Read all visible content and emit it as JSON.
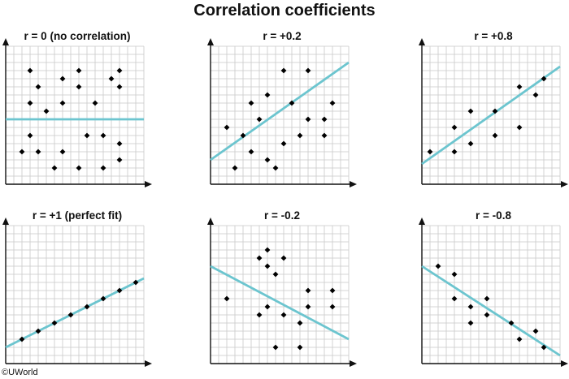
{
  "title": "Correlation coefficients",
  "copyright": "©UWorld",
  "colors": {
    "fit_line": "#6cc5cf",
    "grid": "#c8c8c8",
    "axis": "#111111",
    "point": "#000000"
  },
  "chart_data": [
    {
      "type": "scatter",
      "title": "r = 0 (no correlation)",
      "grid": true,
      "xlim": [
        0,
        17
      ],
      "ylim": [
        0,
        17
      ],
      "points": [
        [
          3,
          14
        ],
        [
          4,
          12
        ],
        [
          3,
          10
        ],
        [
          5,
          9
        ],
        [
          7,
          10
        ],
        [
          7,
          13
        ],
        [
          9,
          14
        ],
        [
          9,
          12
        ],
        [
          11,
          10
        ],
        [
          13,
          13
        ],
        [
          14,
          14
        ],
        [
          14,
          12
        ],
        [
          3,
          6
        ],
        [
          4,
          4
        ],
        [
          2,
          4
        ],
        [
          6,
          2
        ],
        [
          7,
          4
        ],
        [
          9,
          2
        ],
        [
          10,
          6
        ],
        [
          12,
          6
        ],
        [
          12,
          2
        ],
        [
          14,
          5
        ],
        [
          14,
          3
        ]
      ],
      "fit_line": [
        [
          0,
          8
        ],
        [
          17,
          8
        ]
      ]
    },
    {
      "type": "scatter",
      "title": "r = +0.2",
      "grid": true,
      "xlim": [
        0,
        17
      ],
      "ylim": [
        0,
        17
      ],
      "points": [
        [
          2,
          7
        ],
        [
          3,
          2
        ],
        [
          4,
          6
        ],
        [
          5,
          10
        ],
        [
          5,
          4
        ],
        [
          6,
          8
        ],
        [
          7,
          3
        ],
        [
          7,
          11
        ],
        [
          8,
          2
        ],
        [
          9,
          14
        ],
        [
          9,
          5
        ],
        [
          10,
          10
        ],
        [
          11,
          6
        ],
        [
          12,
          14
        ],
        [
          12,
          8
        ],
        [
          14,
          8
        ],
        [
          14,
          6
        ],
        [
          15,
          10
        ]
      ],
      "fit_line": [
        [
          0,
          3
        ],
        [
          17,
          15
        ]
      ]
    },
    {
      "type": "scatter",
      "title": "r = +0.8",
      "grid": true,
      "xlim": [
        0,
        17
      ],
      "ylim": [
        0,
        17
      ],
      "points": [
        [
          1,
          4
        ],
        [
          4,
          4
        ],
        [
          4,
          7
        ],
        [
          6,
          5
        ],
        [
          6,
          9
        ],
        [
          9,
          9
        ],
        [
          9,
          6
        ],
        [
          12,
          12
        ],
        [
          12,
          7
        ],
        [
          14,
          11
        ],
        [
          15,
          13
        ]
      ],
      "fit_line": [
        [
          0,
          2.5
        ],
        [
          17,
          14.5
        ]
      ]
    },
    {
      "type": "scatter",
      "title": "r = +1 (perfect fit)",
      "grid": true,
      "xlim": [
        0,
        17
      ],
      "ylim": [
        0,
        17
      ],
      "points": [
        [
          2,
          3
        ],
        [
          4,
          4
        ],
        [
          6,
          5
        ],
        [
          8,
          6
        ],
        [
          10,
          7
        ],
        [
          12,
          8
        ],
        [
          14,
          9
        ],
        [
          16,
          10
        ]
      ],
      "fit_line": [
        [
          0,
          2
        ],
        [
          17,
          10.5
        ]
      ]
    },
    {
      "type": "scatter",
      "title": "r = -0.2",
      "grid": true,
      "xlim": [
        0,
        17
      ],
      "ylim": [
        0,
        17
      ],
      "points": [
        [
          2,
          8
        ],
        [
          6,
          13
        ],
        [
          6,
          6
        ],
        [
          7,
          12
        ],
        [
          7,
          14
        ],
        [
          7,
          7
        ],
        [
          8,
          11
        ],
        [
          8,
          2
        ],
        [
          9,
          13
        ],
        [
          9,
          6
        ],
        [
          11,
          5
        ],
        [
          11,
          2
        ],
        [
          12,
          9
        ],
        [
          12,
          7
        ],
        [
          15,
          9
        ],
        [
          15,
          7
        ]
      ],
      "fit_line": [
        [
          0,
          12
        ],
        [
          17,
          3
        ]
      ]
    },
    {
      "type": "scatter",
      "title": "r = -0.8",
      "grid": true,
      "xlim": [
        0,
        17
      ],
      "ylim": [
        0,
        17
      ],
      "points": [
        [
          2,
          12
        ],
        [
          4,
          11
        ],
        [
          4,
          8
        ],
        [
          6,
          7
        ],
        [
          6,
          5
        ],
        [
          8,
          8
        ],
        [
          8,
          6
        ],
        [
          11,
          5
        ],
        [
          12,
          3
        ],
        [
          14,
          4
        ],
        [
          15,
          2
        ]
      ],
      "fit_line": [
        [
          0,
          12
        ],
        [
          17,
          1
        ]
      ]
    }
  ]
}
